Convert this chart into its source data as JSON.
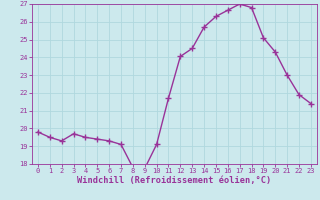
{
  "x": [
    0,
    1,
    2,
    3,
    4,
    5,
    6,
    7,
    8,
    9,
    10,
    11,
    12,
    13,
    14,
    15,
    16,
    17,
    18,
    19,
    20,
    21,
    22,
    23
  ],
  "y": [
    19.8,
    19.5,
    19.3,
    19.7,
    19.5,
    19.4,
    19.3,
    19.1,
    17.8,
    17.75,
    19.1,
    21.7,
    24.05,
    24.5,
    25.7,
    26.3,
    26.65,
    27.0,
    26.8,
    25.1,
    24.3,
    23.0,
    21.9,
    21.4
  ],
  "line_color": "#993399",
  "marker": "+",
  "marker_size": 4,
  "bg_color": "#cce9ed",
  "grid_color": "#b0d8de",
  "xlabel": "Windchill (Refroidissement éolien,°C)",
  "ylabel": "",
  "title": "",
  "ylim": [
    18,
    27
  ],
  "xlim": [
    -0.5,
    23.5
  ],
  "yticks": [
    18,
    19,
    20,
    21,
    22,
    23,
    24,
    25,
    26,
    27
  ],
  "xticks": [
    0,
    1,
    2,
    3,
    4,
    5,
    6,
    7,
    8,
    9,
    10,
    11,
    12,
    13,
    14,
    15,
    16,
    17,
    18,
    19,
    20,
    21,
    22,
    23
  ],
  "tick_color": "#993399",
  "tick_fontsize": 5.0,
  "xlabel_fontsize": 6.2,
  "line_width": 1.0,
  "marker_edge_width": 1.0
}
